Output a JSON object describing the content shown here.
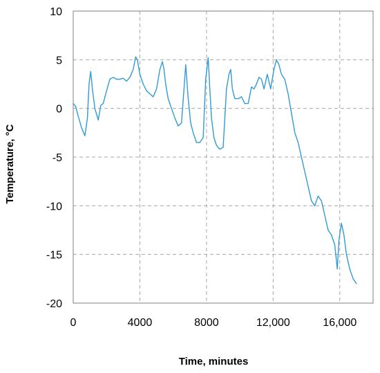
{
  "chart_data": {
    "type": "line",
    "title": "",
    "xlabel": "Time, minutes",
    "ylabel": "Temperature, °C",
    "xlim": [
      0,
      18000
    ],
    "ylim": [
      -20,
      10
    ],
    "xticks": [
      {
        "value": 0,
        "label": "0"
      },
      {
        "value": 4000,
        "label": "4000"
      },
      {
        "value": 8000,
        "label": "8000"
      },
      {
        "value": 12000,
        "label": "12,000"
      },
      {
        "value": 16000,
        "label": "16,000"
      }
    ],
    "yticks": [
      {
        "value": 10,
        "label": "10"
      },
      {
        "value": 5,
        "label": "5"
      },
      {
        "value": 0,
        "label": "0"
      },
      {
        "value": -5,
        "label": "-5"
      },
      {
        "value": -10,
        "label": "-10"
      },
      {
        "value": -15,
        "label": "-15"
      },
      {
        "value": -20,
        "label": "-20"
      }
    ],
    "grid": true,
    "legend": "none",
    "series": [
      {
        "color": "#2e9bd6",
        "x": [
          0,
          150,
          300,
          500,
          700,
          850,
          950,
          1050,
          1150,
          1300,
          1500,
          1650,
          1800,
          2000,
          2200,
          2400,
          2600,
          2800,
          3000,
          3200,
          3400,
          3600,
          3750,
          3850,
          4000,
          4200,
          4400,
          4600,
          4800,
          5000,
          5200,
          5350,
          5450,
          5550,
          5700,
          5900,
          6100,
          6300,
          6500,
          6650,
          6750,
          6900,
          7050,
          7200,
          7400,
          7600,
          7800,
          7950,
          8100,
          8200,
          8300,
          8450,
          8600,
          8800,
          9000,
          9200,
          9350,
          9450,
          9550,
          9700,
          9900,
          10100,
          10300,
          10500,
          10700,
          10850,
          11000,
          11150,
          11300,
          11450,
          11650,
          11850,
          12050,
          12200,
          12350,
          12500,
          12700,
          12900,
          13100,
          13300,
          13500,
          13700,
          13900,
          14100,
          14300,
          14500,
          14700,
          14900,
          15100,
          15300,
          15500,
          15700,
          15850,
          15950,
          16100,
          16250,
          16400,
          16600,
          16800,
          17000
        ],
        "y": [
          0.5,
          0.2,
          -0.8,
          -2.0,
          -2.8,
          -1.0,
          2.5,
          3.8,
          2.0,
          0.0,
          -1.2,
          0.3,
          0.5,
          1.8,
          3.0,
          3.2,
          3.0,
          3.0,
          3.1,
          2.8,
          3.2,
          4.0,
          5.3,
          5.0,
          3.5,
          2.5,
          1.8,
          1.5,
          1.2,
          2.0,
          4.0,
          4.8,
          4.0,
          2.5,
          1.0,
          0.0,
          -1.0,
          -1.8,
          -1.5,
          2.0,
          4.5,
          1.0,
          -1.5,
          -2.5,
          -3.5,
          -3.5,
          -3.0,
          3.0,
          5.2,
          2.0,
          -1.0,
          -3.0,
          -3.8,
          -4.2,
          -4.0,
          2.0,
          3.5,
          4.0,
          2.0,
          1.0,
          1.0,
          1.2,
          0.5,
          0.5,
          2.2,
          2.0,
          2.5,
          3.2,
          3.0,
          2.0,
          3.5,
          2.0,
          4.0,
          5.0,
          4.5,
          3.5,
          3.0,
          1.5,
          -0.5,
          -2.5,
          -3.5,
          -5.0,
          -6.5,
          -8.0,
          -9.5,
          -10.0,
          -9.0,
          -9.5,
          -11.0,
          -12.5,
          -13.0,
          -14.0,
          -16.5,
          -13.5,
          -11.8,
          -13.0,
          -15.0,
          -16.5,
          -17.5,
          -18.0
        ]
      }
    ]
  }
}
